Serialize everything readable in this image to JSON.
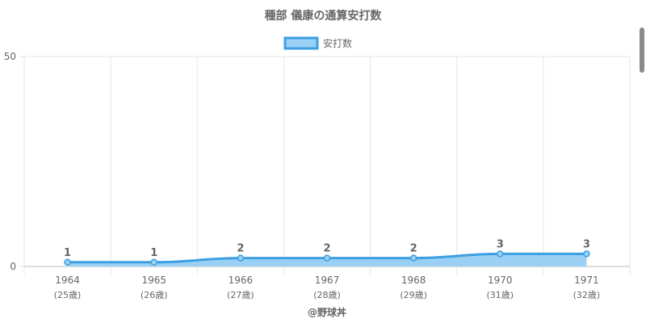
{
  "chart_data": {
    "type": "area",
    "title": "種部 儀康の通算安打数",
    "legend": {
      "label": "安打数",
      "position": "top"
    },
    "categories": [
      "1964",
      "1965",
      "1966",
      "1967",
      "1968",
      "1970",
      "1971"
    ],
    "age_labels": [
      "(25歳)",
      "(26歳)",
      "(27歳)",
      "(28歳)",
      "(29歳)",
      "(31歳)",
      "(32歳)"
    ],
    "series": [
      {
        "name": "安打数",
        "values": [
          1,
          1,
          2,
          2,
          2,
          3,
          3
        ]
      }
    ],
    "ylim": [
      0,
      50
    ],
    "yticks": [
      0,
      50
    ],
    "xlabel": "@野球丼",
    "ylabel": "",
    "grid": true,
    "colors": {
      "line": "#3c9fe2",
      "fill": "#9bd0f5",
      "grid": "#e6e6e6",
      "axis": "#bbbbbb",
      "text": "#666666"
    }
  }
}
